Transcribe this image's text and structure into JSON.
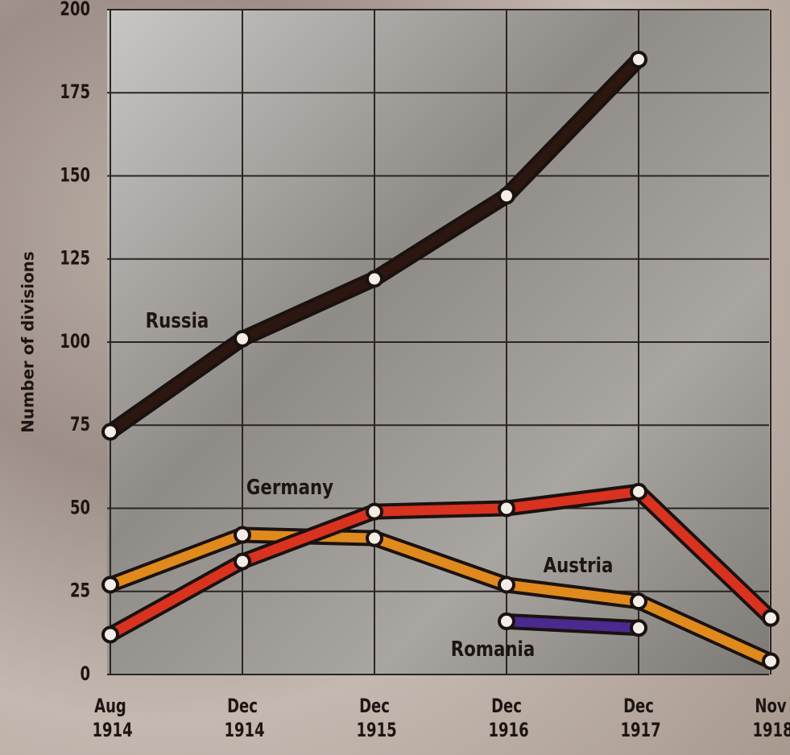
{
  "chart_data": {
    "type": "line",
    "y_label": "Number of divisions",
    "categories": [
      "Aug 1914",
      "Dec 1914",
      "Dec 1915",
      "Dec 1916",
      "Dec 1917",
      "Nov 1918"
    ],
    "series": [
      {
        "name": "Russia",
        "color": "#2b1610",
        "values": [
          73,
          101,
          119,
          144,
          185,
          null
        ]
      },
      {
        "name": "Austria",
        "color": "#e0891c",
        "values": [
          27,
          42,
          41,
          27,
          22,
          4
        ]
      },
      {
        "name": "Germany",
        "color": "#d9321f",
        "values": [
          12,
          34,
          49,
          50,
          55,
          17
        ]
      },
      {
        "name": "Romania",
        "color": "#4a2a8e",
        "values": [
          null,
          null,
          null,
          16,
          14,
          null
        ]
      }
    ],
    "ylim": [
      0,
      200
    ],
    "yticks": [
      0,
      25,
      50,
      75,
      100,
      125,
      150,
      175,
      200
    ],
    "grid": true
  }
}
